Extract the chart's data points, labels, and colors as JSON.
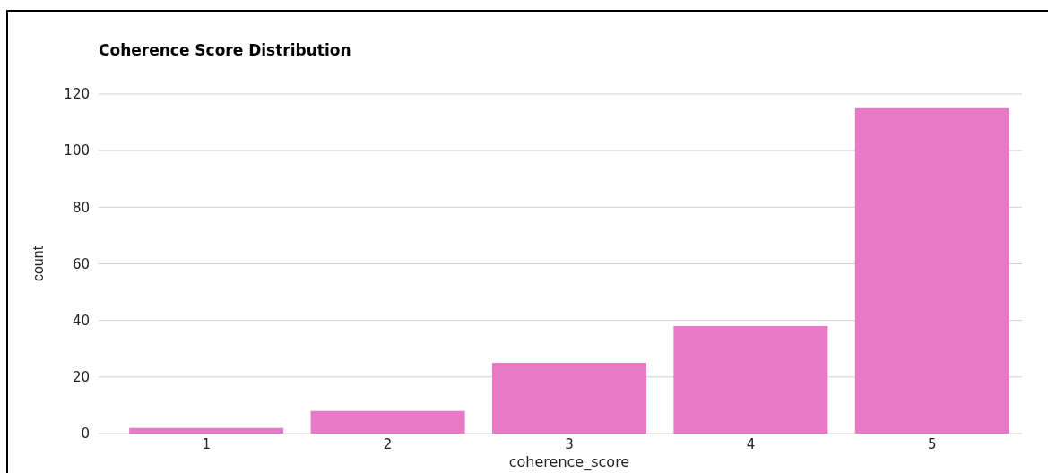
{
  "chart_data": {
    "type": "bar",
    "title": "Coherence Score Distribution",
    "xlabel": "coherence_score",
    "ylabel": "count",
    "categories": [
      "1",
      "2",
      "3",
      "4",
      "5"
    ],
    "values": [
      2,
      8,
      25,
      38,
      115
    ],
    "color": "#e879c7",
    "ylim": [
      0,
      120
    ],
    "yticks": [
      0,
      20,
      40,
      60,
      80,
      100,
      120
    ],
    "grid": "y"
  }
}
